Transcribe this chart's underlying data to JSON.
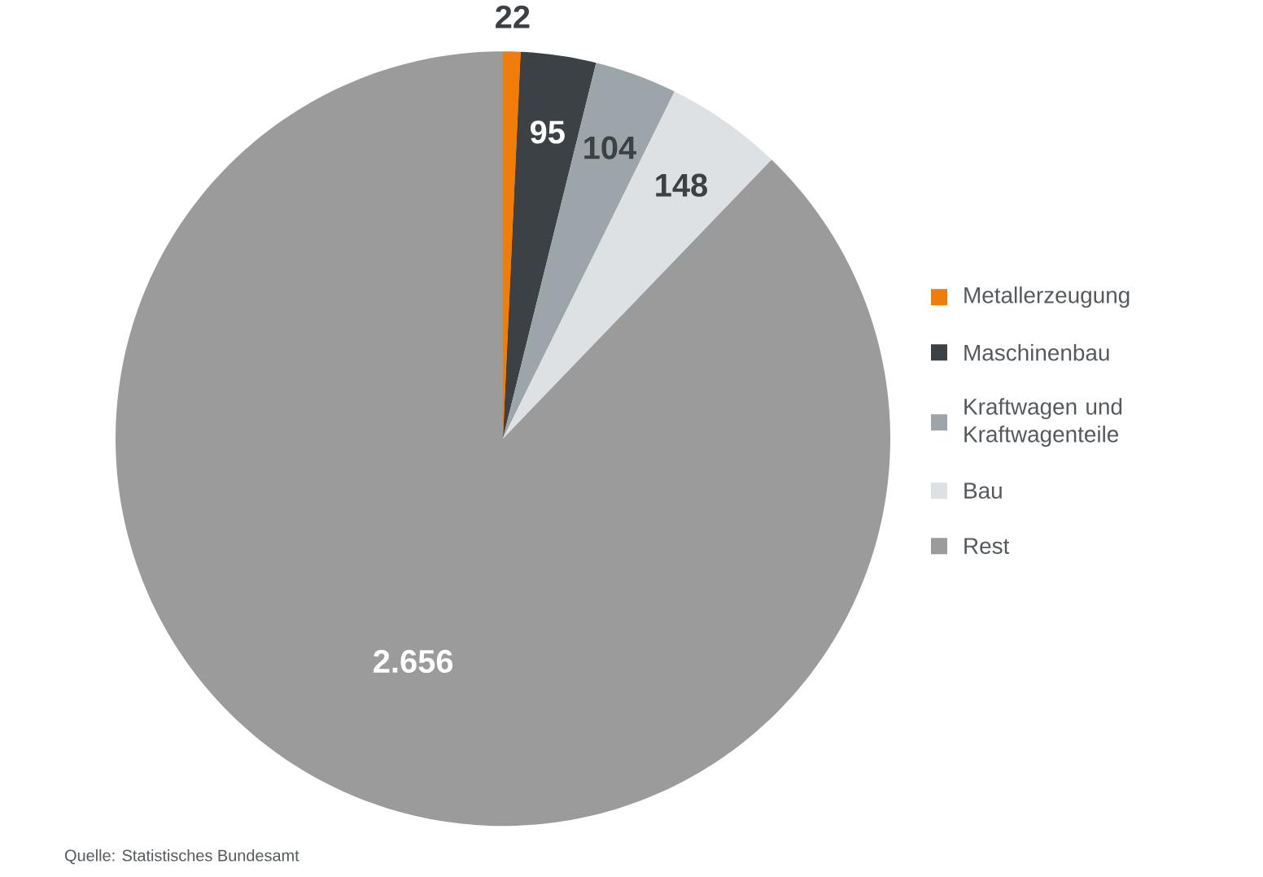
{
  "chart_data": {
    "type": "pie",
    "categories": [
      "Metallerzeugung",
      "Maschinenbau",
      "Kraftwagen und Kraftwagenteile",
      "Bau",
      "Rest"
    ],
    "values": [
      22,
      95,
      104,
      148,
      2656
    ],
    "value_labels": [
      "22",
      "95",
      "104",
      "148",
      "2.656"
    ],
    "colors": [
      "#f07d0a",
      "#3c4146",
      "#9ca6aa",
      "#dde1e4",
      "#9b9b9b"
    ],
    "legend": "right",
    "annotations": [
      "Quelle: Statistisches Bundesamt"
    ]
  }
}
